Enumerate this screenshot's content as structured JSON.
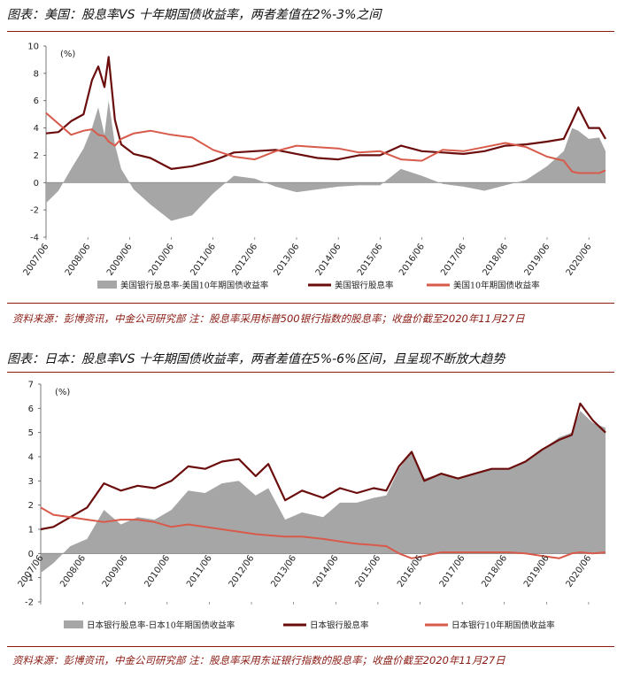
{
  "colors": {
    "accent": "#8a1a12",
    "spread": "#a6a6a6",
    "bank": "#6b0d0d",
    "bond": "#d85a4a"
  },
  "us": {
    "title": "图表：美国：股息率VS 十年期国债收益率，两者差值在2%-3%之间",
    "source": "资料来源：彭博资讯，中金公司研究部 注：股息率采用标普500银行指数的股息率；收盘价截至2020年11月27日"
  },
  "japan": {
    "title": "图表：日本：股息率VS 十年期国债收益率，两者差值在5%-6%区间，且呈现不断放大趋势",
    "source": "资料来源：彭博资讯，中金公司研究部 注：股息率采用东证银行指数的股息率；收盘价截至2020年11月27日"
  },
  "chart_data": [
    {
      "type": "line",
      "title": "美国：股息率VS 十年期国债收益率",
      "unit_label": "(%)",
      "ylim": [
        -4,
        10
      ],
      "yticks": [
        "10",
        "8",
        "6",
        "4",
        "2",
        "0",
        "-2",
        "-4"
      ],
      "x_tick_labels": [
        "2007/06",
        "2008/06",
        "2009/06",
        "2010/06",
        "2011/06",
        "2012/06",
        "2013/06",
        "2014/06",
        "2015/06",
        "2016/06",
        "2017/06",
        "2018/06",
        "2019/06",
        "2020/06"
      ],
      "x": [
        2007.5,
        2007.8,
        2008.1,
        2008.4,
        2008.6,
        2008.75,
        2008.9,
        2009.0,
        2009.15,
        2009.3,
        2009.6,
        2010.0,
        2010.5,
        2011.0,
        2011.5,
        2012.0,
        2012.5,
        2013.0,
        2013.5,
        2014.0,
        2014.5,
        2015.0,
        2015.5,
        2016.0,
        2016.5,
        2017.0,
        2017.5,
        2018.0,
        2018.5,
        2019.0,
        2019.5,
        2019.9,
        2020.1,
        2020.25,
        2020.5,
        2020.75,
        2020.9
      ],
      "series": [
        {
          "name": "美国银行股息率-美国10年期国债收益率",
          "style": "area",
          "values": [
            -1.5,
            -0.6,
            1.0,
            2.5,
            4.0,
            5.5,
            3.5,
            6.0,
            2.8,
            1.0,
            -0.5,
            -1.6,
            -2.8,
            -2.4,
            -0.8,
            0.5,
            0.3,
            -0.3,
            -0.7,
            -0.5,
            -0.3,
            -0.2,
            -0.2,
            1.0,
            0.5,
            -0.1,
            -0.3,
            -0.6,
            -0.2,
            0.2,
            1.2,
            2.3,
            4.0,
            3.8,
            3.2,
            3.3,
            2.3
          ]
        },
        {
          "name": "美国银行股息率",
          "style": "line",
          "values": [
            3.6,
            3.7,
            4.5,
            5.0,
            7.5,
            8.5,
            7.0,
            9.2,
            4.6,
            2.8,
            2.1,
            1.8,
            1.0,
            1.2,
            1.6,
            2.2,
            2.3,
            2.4,
            2.1,
            1.8,
            1.7,
            2.0,
            2.0,
            2.7,
            2.3,
            2.2,
            2.1,
            2.3,
            2.7,
            2.8,
            3.0,
            3.2,
            4.5,
            5.5,
            4.0,
            4.0,
            3.2
          ]
        },
        {
          "name": "美国10年期国债收益率",
          "style": "line",
          "values": [
            5.1,
            4.3,
            3.5,
            3.8,
            3.9,
            3.5,
            3.4,
            3.0,
            2.7,
            3.2,
            3.6,
            3.8,
            3.5,
            3.3,
            2.4,
            1.9,
            1.7,
            2.3,
            2.7,
            2.6,
            2.5,
            2.2,
            2.3,
            1.7,
            1.6,
            2.4,
            2.3,
            2.6,
            2.9,
            2.6,
            1.9,
            1.6,
            0.8,
            0.7,
            0.7,
            0.7,
            0.9
          ]
        }
      ]
    },
    {
      "type": "line",
      "title": "日本：股息率VS 十年期国债收益率",
      "unit_label": "(%)",
      "ylim": [
        -2,
        7
      ],
      "yticks": [
        "7",
        "6",
        "5",
        "4",
        "3",
        "2",
        "1",
        "0",
        "-1",
        "-2"
      ],
      "x_tick_labels": [
        "2007/06",
        "2008/06",
        "2009/06",
        "2010/06",
        "2011/06",
        "2012/06",
        "2013/06",
        "2014/06",
        "2015/06",
        "2016/06",
        "2017/06",
        "2018/06",
        "2019/06",
        "2020/06"
      ],
      "x": [
        2007.5,
        2007.8,
        2008.2,
        2008.6,
        2009.0,
        2009.4,
        2009.8,
        2010.2,
        2010.6,
        2011.0,
        2011.4,
        2011.8,
        2012.2,
        2012.6,
        2012.9,
        2013.3,
        2013.7,
        2014.2,
        2014.6,
        2015.0,
        2015.4,
        2015.7,
        2016.0,
        2016.3,
        2016.6,
        2017.0,
        2017.4,
        2017.8,
        2018.2,
        2018.6,
        2019.0,
        2019.4,
        2019.8,
        2020.1,
        2020.3,
        2020.6,
        2020.9
      ],
      "series": [
        {
          "name": "日本银行股息率-日本10年期国债收益率",
          "style": "area",
          "values": [
            -0.8,
            -0.4,
            0.3,
            0.6,
            1.8,
            1.2,
            1.5,
            1.4,
            1.8,
            2.6,
            2.5,
            2.9,
            3.0,
            2.4,
            2.7,
            1.4,
            1.7,
            1.5,
            2.1,
            2.1,
            2.3,
            2.4,
            3.5,
            4.2,
            3.1,
            3.3,
            3.1,
            3.3,
            3.5,
            3.5,
            3.8,
            4.3,
            4.8,
            5.0,
            5.9,
            5.4,
            5.2
          ]
        },
        {
          "name": "日本银行股息率",
          "style": "line",
          "values": [
            1.0,
            1.1,
            1.5,
            1.9,
            2.9,
            2.6,
            2.8,
            2.7,
            3.0,
            3.6,
            3.5,
            3.8,
            3.9,
            3.2,
            3.7,
            2.2,
            2.6,
            2.3,
            2.7,
            2.5,
            2.7,
            2.6,
            3.6,
            4.2,
            3.0,
            3.3,
            3.1,
            3.3,
            3.5,
            3.5,
            3.8,
            4.3,
            4.7,
            4.9,
            6.2,
            5.5,
            5.0
          ]
        },
        {
          "name": "日本银行10年期国债收益率",
          "style": "line",
          "values": [
            1.9,
            1.6,
            1.5,
            1.4,
            1.3,
            1.4,
            1.4,
            1.3,
            1.1,
            1.2,
            1.1,
            1.0,
            0.9,
            0.8,
            0.75,
            0.7,
            0.7,
            0.6,
            0.5,
            0.4,
            0.35,
            0.3,
            0.0,
            -0.2,
            -0.1,
            0.05,
            0.05,
            0.05,
            0.05,
            0.05,
            0.0,
            -0.1,
            -0.2,
            0.0,
            0.05,
            0.0,
            0.05
          ]
        }
      ]
    }
  ]
}
